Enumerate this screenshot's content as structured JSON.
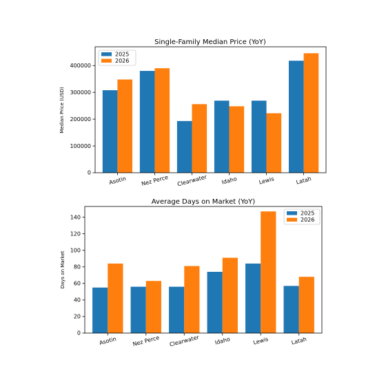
{
  "chart_data": [
    {
      "type": "bar",
      "title": "Single-Family Median Price (YoY)",
      "xlabel": "",
      "ylabel": "Median Price (USD)",
      "categories": [
        "Asotin",
        "Nez Perce",
        "Clearwater",
        "Idaho",
        "Lewis",
        "Latah"
      ],
      "series": [
        {
          "name": "2025",
          "color": "#1f77b4",
          "values": [
            308000,
            380000,
            193000,
            269000,
            269000,
            418000
          ]
        },
        {
          "name": "2026",
          "color": "#ff7f0e",
          "values": [
            348000,
            390000,
            256000,
            248000,
            222000,
            446000
          ]
        }
      ],
      "ylim": [
        0,
        470000
      ],
      "yticks": [
        0,
        100000,
        200000,
        300000,
        400000
      ],
      "ytick_labels": [
        "0",
        "100000",
        "200000",
        "300000",
        "400000"
      ],
      "legend_position": "top-left",
      "grid": false
    },
    {
      "type": "bar",
      "title": "Average Days on Market (YoY)",
      "xlabel": "",
      "ylabel": "Days on Market",
      "categories": [
        "Asotin",
        "Nez Perce",
        "Clearwater",
        "Idaho",
        "Lewis",
        "Latah"
      ],
      "series": [
        {
          "name": "2025",
          "color": "#1f77b4",
          "values": [
            55,
            56,
            56,
            74,
            84,
            57
          ]
        },
        {
          "name": "2026",
          "color": "#ff7f0e",
          "values": [
            84,
            63,
            81,
            91,
            147,
            68
          ]
        }
      ],
      "ylim": [
        0,
        153
      ],
      "yticks": [
        0,
        20,
        40,
        60,
        80,
        100,
        120,
        140
      ],
      "ytick_labels": [
        "0",
        "20",
        "40",
        "60",
        "80",
        "100",
        "120",
        "140"
      ],
      "legend_position": "top-right",
      "grid": false
    }
  ]
}
